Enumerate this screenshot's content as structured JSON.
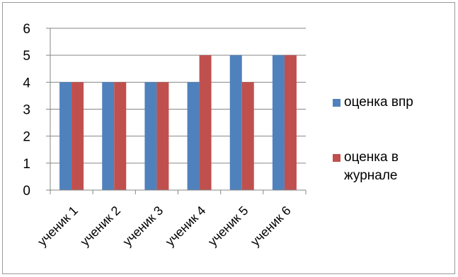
{
  "chart_data": {
    "type": "bar",
    "categories": [
      "ученик 1",
      "ученик 2",
      "ученик 3",
      "ученик 4",
      "ученик 5",
      "ученик 6"
    ],
    "series": [
      {
        "name": "оценка впр",
        "color": "#4f81bd",
        "values": [
          4,
          4,
          4,
          4,
          5,
          5
        ]
      },
      {
        "name": "оценка в журнале",
        "color": "#c0504d",
        "values": [
          4,
          4,
          4,
          5,
          4,
          5
        ]
      }
    ],
    "ylim": [
      0,
      6
    ],
    "yticks": [
      0,
      1,
      2,
      3,
      4,
      5,
      6
    ],
    "grid": true,
    "legend_position": "right"
  }
}
